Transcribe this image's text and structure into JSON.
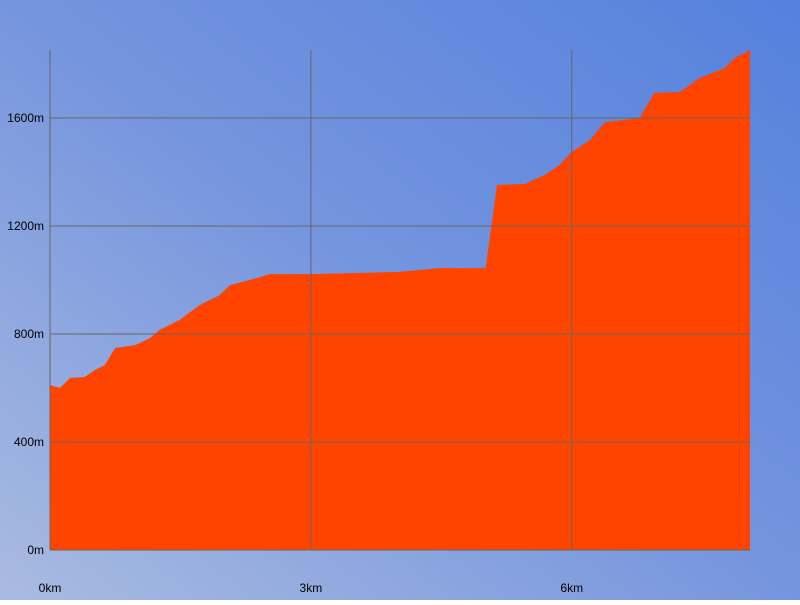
{
  "chart_data": {
    "type": "area",
    "x": [
      0,
      0.115,
      0.23,
      0.4,
      0.52,
      0.63,
      0.75,
      0.98,
      1.15,
      1.26,
      1.49,
      1.72,
      1.95,
      2.07,
      2.3,
      2.53,
      3.0,
      4.02,
      4.48,
      5.01,
      5.14,
      5.46,
      5.69,
      5.86,
      6.0,
      6.21,
      6.38,
      6.78,
      6.95,
      7.24,
      7.47,
      7.76,
      7.87,
      8.05
    ],
    "values": [
      611,
      600,
      637,
      641,
      667,
      685,
      748,
      759,
      785,
      815,
      852,
      907,
      944,
      981,
      1000,
      1022,
      1022,
      1030,
      1044,
      1044,
      1352,
      1356,
      1389,
      1426,
      1474,
      1519,
      1585,
      1600,
      1693,
      1696,
      1748,
      1785,
      1822,
      1852
    ],
    "color": "#ff4400",
    "xlim": [
      0,
      8.05
    ],
    "ylim": [
      0,
      1852
    ],
    "xticks": [
      {
        "value": 0,
        "label": "0km"
      },
      {
        "value": 3,
        "label": "3km"
      },
      {
        "value": 6,
        "label": "6km"
      }
    ],
    "yticks": [
      {
        "value": 0,
        "label": "0m"
      },
      {
        "value": 400,
        "label": "400m"
      },
      {
        "value": 800,
        "label": "800m"
      },
      {
        "value": 1200,
        "label": "1200m"
      },
      {
        "value": 1600,
        "label": "1600m"
      }
    ],
    "grid": true
  }
}
